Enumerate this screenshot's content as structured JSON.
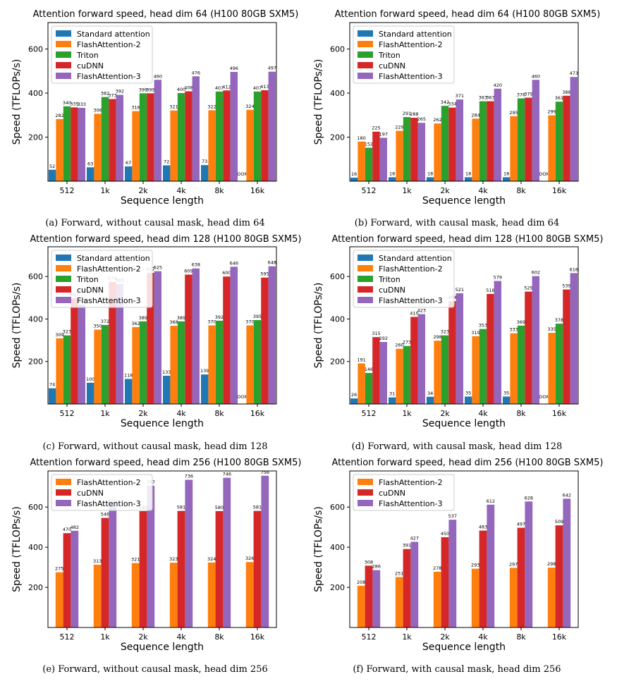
{
  "colors": {
    "Standard attention": "#1f77b4",
    "FlashAttention-2": "#ff7f0e",
    "Triton": "#2ca02c",
    "cuDNN": "#d62728",
    "FlashAttention-3": "#9467bd"
  },
  "oom_label": "OOM",
  "chart_data": [
    {
      "type": "bar",
      "title": "Attention forward speed, head dim 64 (H100 80GB SXM5)",
      "caption": "(a) Forward, without causal mask, head dim 64",
      "xlabel": "Sequence length",
      "ylabel": "Speed (TFLOPs/s)",
      "categories": [
        "512",
        "1k",
        "2k",
        "4k",
        "8k",
        "16k"
      ],
      "ylim": [
        0,
        720
      ],
      "yticks": [
        200,
        400,
        600
      ],
      "legend": "top-left",
      "series": [
        {
          "name": "Standard attention",
          "values": [
            52,
            63,
            67,
            72,
            73,
            null
          ]
        },
        {
          "name": "FlashAttention-2",
          "values": [
            282,
            306,
            318,
            321,
            322,
            324
          ]
        },
        {
          "name": "Triton",
          "values": [
            340,
            382,
            399,
            400,
            407,
            407
          ]
        },
        {
          "name": "cuDNN",
          "values": [
            335,
            373,
            399,
            408,
            412,
            413
          ]
        },
        {
          "name": "FlashAttention-3",
          "values": [
            333,
            392,
            460,
            476,
            496,
            497
          ]
        }
      ]
    },
    {
      "type": "bar",
      "title": "Attention forward speed, head dim 64 (H100 80GB SXM5)",
      "caption": "(b) Forward, with causal mask, head dim 64",
      "xlabel": "Sequence length",
      "ylabel": "Speed (TFLOPs/s)",
      "categories": [
        "512",
        "1k",
        "2k",
        "4k",
        "8k",
        "16k"
      ],
      "ylim": [
        0,
        720
      ],
      "yticks": [
        200,
        400,
        600
      ],
      "legend": "top-left",
      "series": [
        {
          "name": "Standard attention",
          "values": [
            16,
            18,
            18,
            18,
            18,
            null
          ]
        },
        {
          "name": "FlashAttention-2",
          "values": [
            180,
            229,
            262,
            284,
            295,
            299
          ]
        },
        {
          "name": "Triton",
          "values": [
            152,
            291,
            342,
            363,
            376,
            361
          ]
        },
        {
          "name": "cuDNN",
          "values": [
            225,
            288,
            334,
            363,
            379,
            388
          ]
        },
        {
          "name": "FlashAttention-3",
          "values": [
            197,
            265,
            371,
            420,
            460,
            473
          ]
        }
      ]
    },
    {
      "type": "bar",
      "title": "Attention forward speed, head dim 128 (H100 80GB SXM5)",
      "caption": "(c) Forward, without causal mask, head dim 128",
      "xlabel": "Sequence length",
      "ylabel": "Speed (TFLOPs/s)",
      "categories": [
        "512",
        "1k",
        "2k",
        "4k",
        "8k",
        "16k"
      ],
      "ylim": [
        0,
        740
      ],
      "yticks": [
        200,
        400,
        600
      ],
      "legend": "top-left",
      "series": [
        {
          "name": "Standard attention",
          "values": [
            74,
            100,
            118,
            133,
            139,
            null
          ]
        },
        {
          "name": "FlashAttention-2",
          "values": [
            309,
            350,
            362,
            368,
            370,
            370
          ]
        },
        {
          "name": "Triton",
          "values": [
            323,
            372,
            389,
            389,
            392,
            395
          ]
        },
        {
          "name": "cuDNN",
          "values": [
            497,
            574,
            617,
            609,
            600,
            595
          ]
        },
        {
          "name": "FlashAttention-3",
          "values": [
            467,
            565,
            625,
            638,
            646,
            648
          ]
        }
      ]
    },
    {
      "type": "bar",
      "title": "Attention forward speed, head dim 128 (H100 80GB SXM5)",
      "caption": "(d) Forward, with causal mask, head dim 128",
      "xlabel": "Sequence length",
      "ylabel": "Speed (TFLOPs/s)",
      "categories": [
        "512",
        "1k",
        "2k",
        "4k",
        "8k",
        "16k"
      ],
      "ylim": [
        0,
        740
      ],
      "yticks": [
        200,
        400,
        600
      ],
      "legend": "top-left",
      "series": [
        {
          "name": "Standard attention",
          "values": [
            26,
            31,
            34,
            35,
            35,
            null
          ]
        },
        {
          "name": "FlashAttention-2",
          "values": [
            191,
            260,
            298,
            319,
            333,
            335
          ]
        },
        {
          "name": "Triton",
          "values": [
            146,
            273,
            323,
            353,
            369,
            378
          ]
        },
        {
          "name": "cuDNN",
          "values": [
            315,
            410,
            484,
            518,
            529,
            539
          ]
        },
        {
          "name": "FlashAttention-3",
          "values": [
            292,
            423,
            521,
            579,
            602,
            616
          ]
        }
      ]
    },
    {
      "type": "bar",
      "title": "Attention forward speed, head dim 256 (H100 80GB SXM5)",
      "caption": "(e) Forward, without causal mask, head dim 256",
      "xlabel": "Sequence length",
      "ylabel": "Speed (TFLOPs/s)",
      "categories": [
        "512",
        "1k",
        "2k",
        "4k",
        "8k",
        "16k"
      ],
      "ylim": [
        0,
        780
      ],
      "yticks": [
        200,
        400,
        600
      ],
      "legend": "top-left",
      "series": [
        {
          "name": "FlashAttention-2",
          "values": [
            275,
            313,
            321,
            323,
            324,
            326
          ]
        },
        {
          "name": "cuDNN",
          "values": [
            470,
            546,
            580,
            581,
            580,
            581
          ]
        },
        {
          "name": "FlashAttention-3",
          "values": [
            482,
            613,
            707,
            736,
            746,
            756
          ]
        }
      ]
    },
    {
      "type": "bar",
      "title": "Attention forward speed, head dim 256 (H100 80GB SXM5)",
      "caption": "(f) Forward, with causal mask, head dim 256",
      "xlabel": "Sequence length",
      "ylabel": "Speed (TFLOPs/s)",
      "categories": [
        "512",
        "1k",
        "2k",
        "4k",
        "8k",
        "16k"
      ],
      "ylim": [
        0,
        780
      ],
      "yticks": [
        200,
        400,
        600
      ],
      "legend": "top-left",
      "series": [
        {
          "name": "FlashAttention-2",
          "values": [
            208,
            251,
            278,
            293,
            297,
            298
          ]
        },
        {
          "name": "cuDNN",
          "values": [
            308,
            391,
            450,
            483,
            497,
            509
          ]
        },
        {
          "name": "FlashAttention-3",
          "values": [
            286,
            427,
            537,
            612,
            628,
            642
          ]
        }
      ]
    }
  ]
}
